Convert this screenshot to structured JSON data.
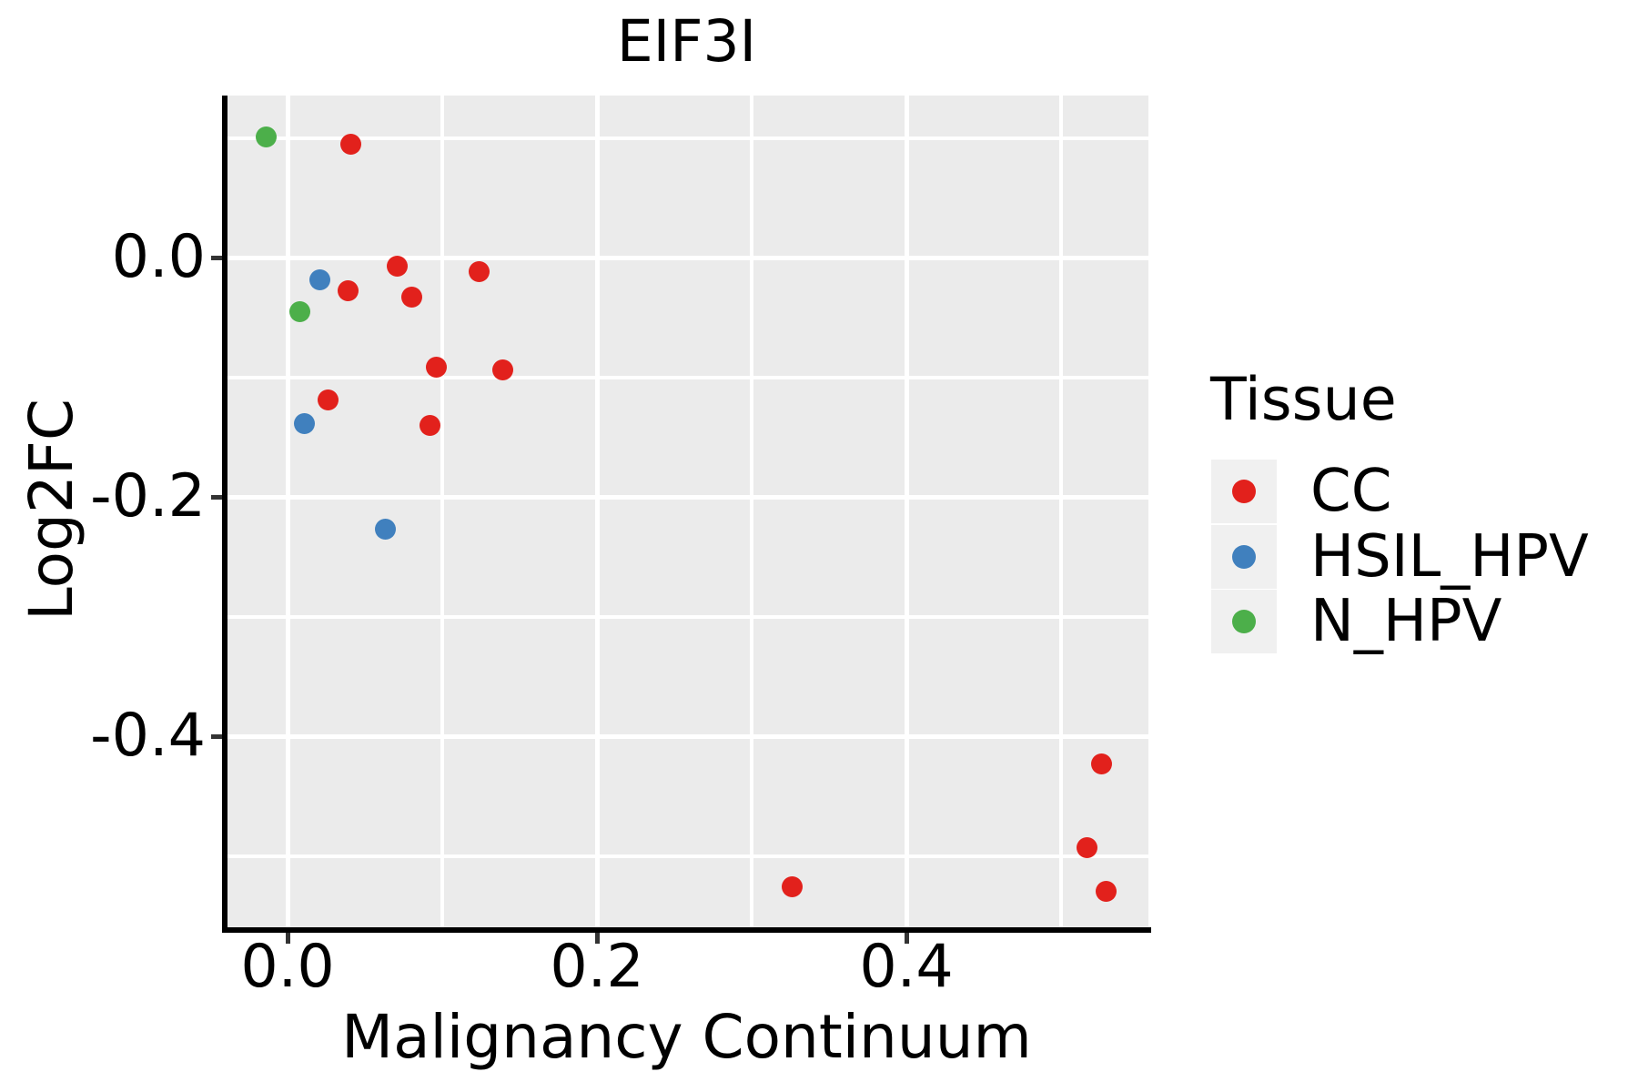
{
  "chart_data": {
    "type": "scatter",
    "title": "EIF3I",
    "xlabel": "Malignancy Continuum",
    "ylabel": "Log2FC",
    "xlim": [
      -0.041,
      0.557
    ],
    "ylim": [
      -0.56,
      0.135
    ],
    "panel_bg": "#EBEBEB",
    "grid": "white major and minor gridlines on gray panel",
    "x_ticks": {
      "labels": [
        "0.0",
        "0.2",
        "0.4"
      ],
      "values": [
        0,
        0.2,
        0.4
      ],
      "minor": [
        0.1,
        0.3,
        0.5
      ]
    },
    "y_ticks": {
      "labels": [
        "0.0",
        "-0.2",
        "-0.4"
      ],
      "values": [
        0,
        -0.2,
        -0.4
      ],
      "minor": [
        0.1,
        -0.1,
        -0.3,
        -0.5
      ]
    },
    "legend": {
      "title": "Tissue",
      "position": "right"
    },
    "series": [
      {
        "name": "CC",
        "color": "#E2211C",
        "points": [
          [
            0.041,
            0.095
          ],
          [
            0.071,
            -0.007
          ],
          [
            0.039,
            -0.028
          ],
          [
            0.08,
            -0.033
          ],
          [
            0.124,
            -0.012
          ],
          [
            0.096,
            -0.092
          ],
          [
            0.139,
            -0.094
          ],
          [
            0.026,
            -0.119
          ],
          [
            0.092,
            -0.14
          ],
          [
            0.326,
            -0.526
          ],
          [
            0.526,
            -0.423
          ],
          [
            0.517,
            -0.493
          ],
          [
            0.529,
            -0.53
          ]
        ]
      },
      {
        "name": "HSIL_HPV",
        "color": "#4080BE",
        "points": [
          [
            0.021,
            -0.019
          ],
          [
            0.011,
            -0.139
          ],
          [
            0.063,
            -0.227
          ]
        ]
      },
      {
        "name": "N_HPV",
        "color": "#4CAF4A",
        "points": [
          [
            -0.014,
            0.101
          ],
          [
            0.008,
            -0.045
          ]
        ]
      }
    ]
  }
}
